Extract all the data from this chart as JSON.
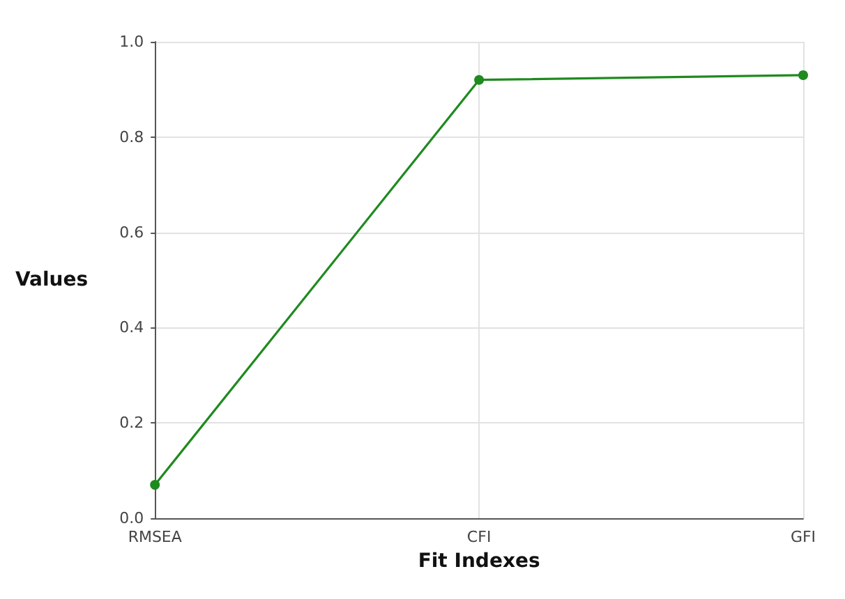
{
  "chart_data": {
    "type": "line",
    "xlabel": "Fit Indexes",
    "ylabel": "Values",
    "categories": [
      "RMSEA",
      "CFI",
      "GFI"
    ],
    "series": [
      {
        "color": "#1f8a1f",
        "values": [
          0.07,
          0.92,
          0.93
        ]
      }
    ],
    "ylim": [
      0,
      1
    ],
    "yticks": [
      {
        "value": 0,
        "label": "0.0"
      },
      0.2,
      0.4,
      0.6,
      0.8,
      {
        "value": 1,
        "label": "1.0"
      }
    ],
    "grid": true,
    "marker": "circle",
    "line_style": "solid"
  }
}
